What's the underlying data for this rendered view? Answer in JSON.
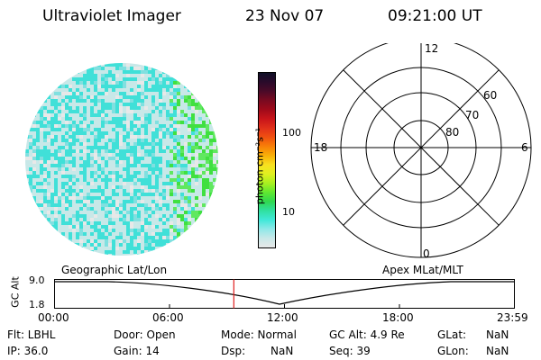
{
  "header": {
    "title": "Ultraviolet Imager",
    "date": "23 Nov 07",
    "time": "09:21:00 UT"
  },
  "colorbar": {
    "unit_label": "photon cm⁻²s⁻¹",
    "ticks": [
      "100",
      "10"
    ],
    "colors": [
      "#101028",
      "#2a0a2a",
      "#4a0a28",
      "#7a0a20",
      "#a00a1a",
      "#c8141a",
      "#e0301a",
      "#f05010",
      "#f88008",
      "#f8b008",
      "#f8e020",
      "#e0f020",
      "#a8f020",
      "#60e830",
      "#30d850",
      "#30e0a0",
      "#40e8d8",
      "#90e8e8",
      "#c8e8e8",
      "#e8e8e8"
    ]
  },
  "polar": {
    "mlt_labels": [
      "12",
      "18",
      "6",
      "0"
    ],
    "lat_labels": [
      "60",
      "70",
      "80"
    ]
  },
  "timeline": {
    "ylabel": "GC Alt",
    "ytick_top": "9.0",
    "ytick_bottom": "1.8",
    "left_caption": "Geographic Lat/Lon",
    "right_caption": "Apex MLat/MLT",
    "xticks": [
      "00:00",
      "06:00",
      "12:00",
      "18:00",
      "23:59"
    ],
    "marker_time": "09:21"
  },
  "footer": {
    "flt": "Flt: LBHL",
    "ip": "IP: 36.0",
    "door": "Door: Open",
    "gain": "Gain: 14",
    "mode": "Mode: Normal",
    "dsp": "Dsp:",
    "dsp_val": "NaN",
    "gcalt": "GC Alt: 4.9 Re",
    "seq": "Seq: 39",
    "glat": "GLat:",
    "glat_val": "NaN",
    "glon": "GLon:",
    "glon_val": "NaN"
  },
  "colors": {
    "marker": "#e02020",
    "disk_base": "#c8e8e8",
    "disk_speckle": "#40e0d8",
    "disk_bright": "#40e040"
  }
}
